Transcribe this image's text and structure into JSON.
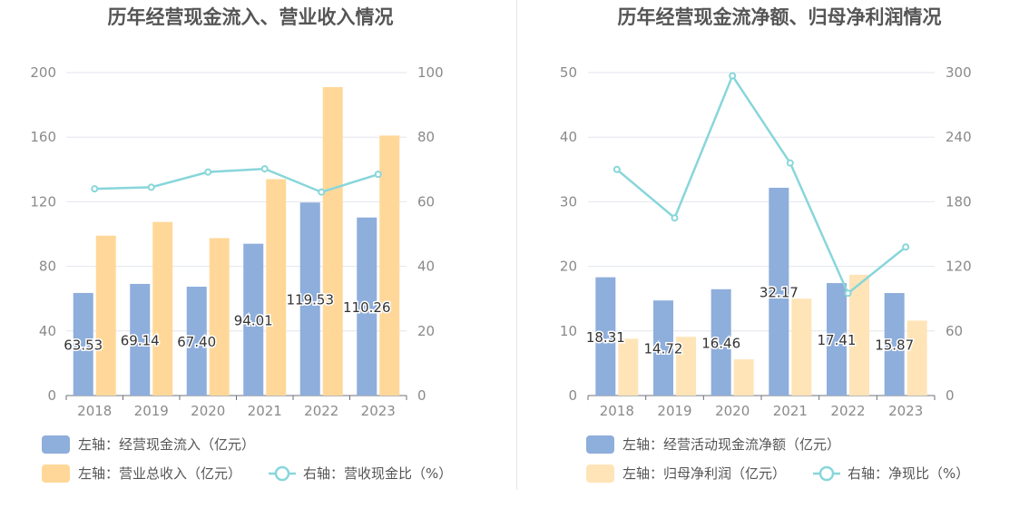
{
  "chart_data": [
    {
      "type": "bar",
      "title": "历年经营现金流入、营业收入情况",
      "categories": [
        "2018",
        "2019",
        "2020",
        "2021",
        "2022",
        "2023"
      ],
      "y_left": {
        "ticks": [
          "0",
          "40",
          "80",
          "120",
          "160",
          "200"
        ],
        "range": [
          0,
          200
        ]
      },
      "y_right": {
        "ticks": [
          "0",
          "20",
          "40",
          "60",
          "80",
          "100"
        ],
        "range": [
          0,
          100
        ]
      },
      "series": [
        {
          "name": "左轴：经营现金流入（亿元）",
          "kind": "bar",
          "axis": "left",
          "color": "#8eaedb",
          "values": [
            63.53,
            69.14,
            67.4,
            94.01,
            119.53,
            110.26
          ],
          "labels": [
            "63.53",
            "69.14",
            "67.40",
            "94.01",
            "119.53",
            "110.26"
          ]
        },
        {
          "name": "左轴：营业总收入（亿元）",
          "kind": "bar",
          "axis": "left",
          "color": "#ffd899",
          "values": [
            99,
            107.5,
            97.5,
            134,
            191,
            161
          ]
        },
        {
          "name": "右轴：营收现金比（%）",
          "kind": "line",
          "axis": "right",
          "color": "#88d6da",
          "values": [
            64,
            64.5,
            69.2,
            70.2,
            63,
            68.5
          ]
        }
      ],
      "grid": true,
      "legend_position": "bottom-left"
    },
    {
      "type": "bar",
      "title": "历年经营现金流净额、归母净利润情况",
      "categories": [
        "2018",
        "2019",
        "2020",
        "2021",
        "2022",
        "2023"
      ],
      "y_left": {
        "ticks": [
          "0",
          "10",
          "20",
          "30",
          "40",
          "50"
        ],
        "range": [
          0,
          50
        ]
      },
      "y_right": {
        "ticks": [
          "0",
          "60",
          "120",
          "180",
          "240",
          "300"
        ],
        "range": [
          0,
          300
        ]
      },
      "series": [
        {
          "name": "左轴：经营活动现金流净额（亿元）",
          "kind": "bar",
          "axis": "left",
          "color": "#8eaedb",
          "values": [
            18.31,
            14.72,
            16.46,
            32.17,
            17.41,
            15.87
          ],
          "labels": [
            "18.31",
            "14.72",
            "16.46",
            "32.17",
            "17.41",
            "15.87"
          ]
        },
        {
          "name": "左轴：归母净利润（亿元）",
          "kind": "bar",
          "axis": "left",
          "color": "#ffe4b8",
          "values": [
            8.8,
            9.1,
            5.6,
            15,
            18.7,
            11.6
          ]
        },
        {
          "name": "右轴：净现比（%）",
          "kind": "line",
          "axis": "right",
          "color": "#88d6da",
          "values": [
            210,
            165,
            297,
            216,
            95,
            138
          ]
        }
      ],
      "grid": true,
      "legend_position": "bottom-left"
    }
  ]
}
